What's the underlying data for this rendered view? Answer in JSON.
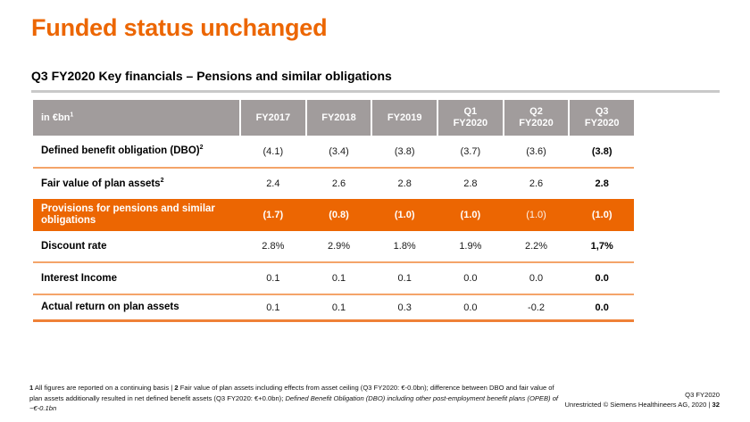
{
  "title": "Funded status unchanged",
  "subtitle": "Q3 FY2020 Key financials – Pensions and similar obligations",
  "table": {
    "unit_header": {
      "text": "in €bn",
      "sup": "1"
    },
    "columns": [
      {
        "line1": "FY2017",
        "line2": ""
      },
      {
        "line1": "FY2018",
        "line2": ""
      },
      {
        "line1": "FY2019",
        "line2": ""
      },
      {
        "line1": "Q1",
        "line2": "FY2020"
      },
      {
        "line1": "Q2",
        "line2": "FY2020"
      },
      {
        "line1": "Q3",
        "line2": "FY2020"
      }
    ],
    "rows": [
      {
        "label": "Defined benefit obligation (DBO)",
        "sup": "2",
        "values": [
          "(4.1)",
          "(3.4)",
          "(3.8)",
          "(3.7)",
          "(3.6)",
          "(3.8)"
        ]
      },
      {
        "label": "Fair value of plan assets",
        "sup": "2",
        "values": [
          "2.4",
          "2.6",
          "2.8",
          "2.8",
          "2.6",
          "2.8"
        ]
      },
      {
        "label": "Provisions for pensions and similar obligations",
        "sup": "",
        "values": [
          "(1.7)",
          "(0.8)",
          "(1.0)",
          "(1.0)",
          "(1.0)",
          "(1.0)"
        ]
      },
      {
        "label": "Discount rate",
        "sup": "",
        "values": [
          "2.8%",
          "2.9%",
          "1.8%",
          "1.9%",
          "2.2%",
          "1,7%"
        ]
      },
      {
        "label": "Interest Income",
        "sup": "",
        "values": [
          "0.1",
          "0.1",
          "0.1",
          "0.0",
          "0.0",
          "0.0"
        ]
      },
      {
        "label": "Actual return on plan assets",
        "sup": "",
        "values": [
          "0.1",
          "0.1",
          "0.3",
          "0.0",
          "-0.2",
          "0.0"
        ]
      }
    ]
  },
  "footnote": {
    "marker1": "1",
    "text1": " All figures are reported on a continuing basis | ",
    "marker2": "2",
    "text2": " Fair value of plan assets including effects from asset ceiling (Q3 FY2020: €-0.0bn); difference between DBO and fair value of plan assets additionally resulted in net defined benefit assets (Q3 FY2020: €+0.0bn); ",
    "text3_italic": "Defined Benefit Obligation (DBO) including other post-employment benefit plans (OPEB) of ~€-0.1bn"
  },
  "footer": {
    "period": "Q3 FY2020",
    "classification": "Unrestricted © Siemens Healthineers AG, 2020 | ",
    "page": "32"
  },
  "colors": {
    "accent_orange": "#EC6602",
    "header_gray": "#A19C9C",
    "row_separator_orange": "#F4A469",
    "table_bottom_border_orange": "#EF8137",
    "subtitle_rule_gray": "#C9C9C9"
  }
}
